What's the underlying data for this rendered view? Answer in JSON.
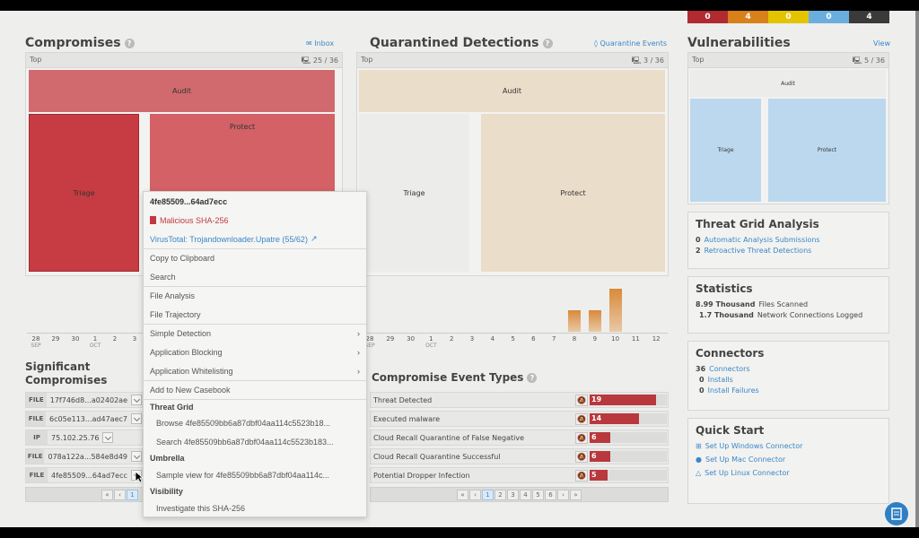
{
  "severity": [
    {
      "value": "0",
      "color": "#b02a30"
    },
    {
      "value": "4",
      "color": "#d8801a"
    },
    {
      "value": "0",
      "color": "#e4c400"
    },
    {
      "value": "0",
      "color": "#6aaee0"
    },
    {
      "value": "4",
      "color": "#3a3a3a"
    }
  ],
  "compromises": {
    "title": "Compromises",
    "link": "Inbox",
    "top": "Top",
    "count": "25 / 36",
    "treemap": [
      "Audit",
      "Triage",
      "Protect"
    ]
  },
  "quarantine": {
    "title": "Quarantined Detections",
    "link": "Quarantine Events",
    "top": "Top",
    "count": "3 / 36",
    "treemap": [
      "Audit",
      "Triage",
      "Protect"
    ]
  },
  "vulnerabilities": {
    "title": "Vulnerabilities",
    "link": "View",
    "top": "Top",
    "count": "5 / 36",
    "treemap": [
      "Audit",
      "Triage",
      "Protect"
    ]
  },
  "chart_data": {
    "type": "bar",
    "categories": [
      "28",
      "29",
      "30",
      "1",
      "2",
      "3",
      "4",
      "5",
      "6",
      "7",
      "8",
      "9",
      "10",
      "11",
      "12"
    ],
    "month_labels": {
      "28": "SEP",
      "1": "OCT"
    },
    "values": [
      0,
      0,
      0,
      0,
      0,
      0,
      0,
      0,
      0,
      0,
      2,
      2,
      4,
      0,
      0
    ]
  },
  "significant": {
    "title": "Significant Compromises",
    "rows": [
      {
        "type": "FILE",
        "value": "17f746d8...a02402ae"
      },
      {
        "type": "FILE",
        "value": "6c05e113...ad47aec7"
      },
      {
        "type": "IP",
        "value": "75.102.25.76"
      },
      {
        "type": "FILE",
        "value": "078a122a...584e8d49"
      },
      {
        "type": "FILE",
        "value": "4fe85509...64ad7ecc"
      }
    ],
    "pages": [
      "«",
      "‹",
      "1"
    ]
  },
  "event_types": {
    "title": "Compromise Event Types",
    "rows": [
      {
        "label": "Threat Detected",
        "count": 19
      },
      {
        "label": "Executed malware",
        "count": 14
      },
      {
        "label": "Cloud Recall Quarantine of False Negative",
        "count": 6
      },
      {
        "label": "Cloud Recall Quarantine Successful",
        "count": 6
      },
      {
        "label": "Potential Dropper Infection",
        "count": 5
      }
    ],
    "max": 22,
    "pages": [
      "«",
      "‹",
      "1",
      "2",
      "3",
      "4",
      "5",
      "6",
      "›",
      "»"
    ]
  },
  "threat_grid": {
    "title": "Threat Grid Analysis",
    "items": [
      {
        "n": "0",
        "label": "Automatic Analysis Submissions"
      },
      {
        "n": "2",
        "label": "Retroactive Threat Detections"
      }
    ]
  },
  "statistics": {
    "title": "Statistics",
    "items": [
      {
        "n": "8.99 Thousand",
        "label": "Files Scanned"
      },
      {
        "n": "1.7 Thousand",
        "label": "Network Connections Logged"
      }
    ]
  },
  "connectors": {
    "title": "Connectors",
    "items": [
      {
        "n": "36",
        "label": "Connectors"
      },
      {
        "n": "0",
        "label": "Installs"
      },
      {
        "n": "0",
        "label": "Install Failures"
      }
    ]
  },
  "quick_start": {
    "title": "Quick Start",
    "items": [
      "Set Up Windows Connector",
      "Set Up Mac Connector",
      "Set Up Linux Connector"
    ]
  },
  "menu": {
    "hash": "4fe85509...64ad7ecc",
    "malicious": "Malicious SHA-256",
    "virustotal": "VirusTotal: Trojandownloader.Upatre (55/62)",
    "copy": "Copy to Clipboard",
    "search": "Search",
    "file_analysis": "File Analysis",
    "file_trajectory": "File Trajectory",
    "simple_detection": "Simple Detection",
    "app_blocking": "Application Blocking",
    "app_whitelisting": "Application Whitelisting",
    "casebook": "Add to New Casebook",
    "tg_header": "Threat Grid",
    "tg_browse": "Browse 4fe85509bb6a87dbf04aa114c5523b18...",
    "tg_search": "Search 4fe85509bb6a87dbf04aa114c5523b183...",
    "umbrella_header": "Umbrella",
    "umbrella_item": "Sample view for 4fe85509bb6a87dbf04aa114c...",
    "visibility_header": "Visibility",
    "visibility_item": "Investigate this SHA-256"
  }
}
